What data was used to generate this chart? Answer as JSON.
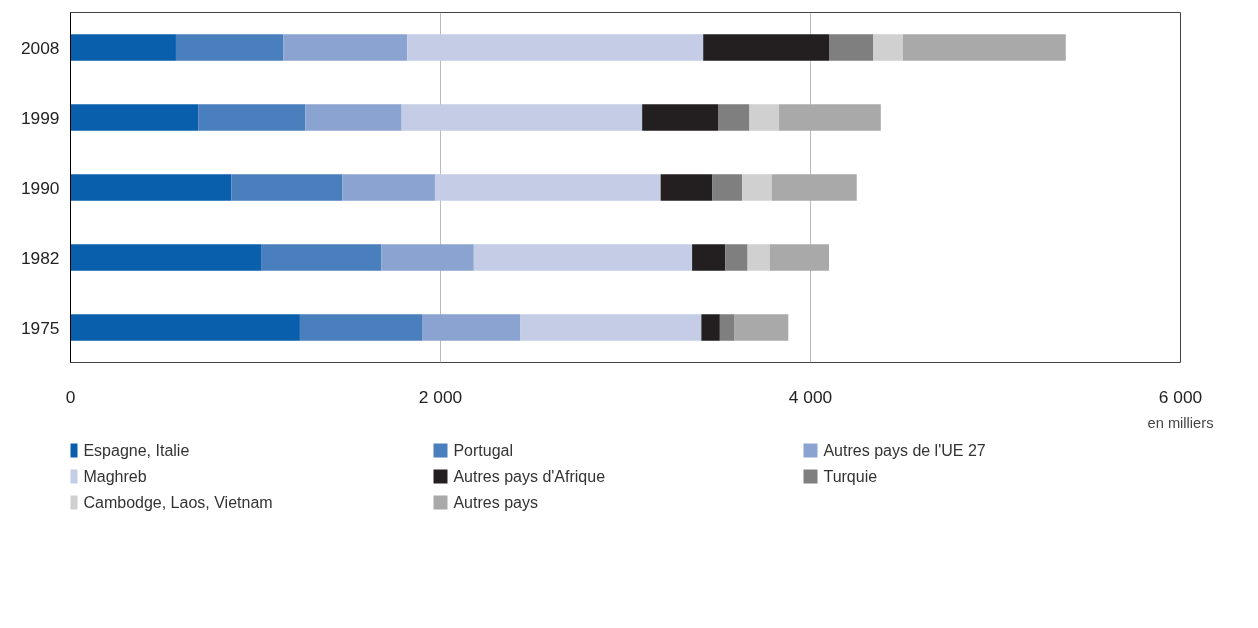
{
  "chart_data": {
    "type": "bar",
    "orientation": "horizontal",
    "stacked": true,
    "xlabel": "en milliers",
    "categories": [
      "2008",
      "1999",
      "1990",
      "1982",
      "1975"
    ],
    "series": [
      {
        "name": "Espagne, Italie",
        "color": "#0a5fad",
        "values": [
          570,
          690,
          870,
          1030,
          1240
        ]
      },
      {
        "name": "Portugal",
        "color": "#4a7fbd",
        "values": [
          580,
          580,
          600,
          650,
          660
        ]
      },
      {
        "name": "Autres pays de l'UE 27",
        "color": "#8aa3d1",
        "values": [
          670,
          520,
          500,
          500,
          530
        ]
      },
      {
        "name": "Maghreb",
        "color": "#c5cde6",
        "values": [
          1600,
          1300,
          1220,
          1180,
          980
        ]
      },
      {
        "name": "Autres pays d'Afrique",
        "color": "#231f20",
        "values": [
          680,
          410,
          280,
          180,
          100
        ]
      },
      {
        "name": "Turquie",
        "color": "#7f7f7f",
        "values": [
          240,
          170,
          160,
          120,
          80
        ]
      },
      {
        "name": "Cambodge, Laos, Vietnam",
        "color": "#d0d0d0",
        "values": [
          160,
          160,
          160,
          120,
          0
        ]
      },
      {
        "name": "Autres pays",
        "color": "#a9a9a9",
        "values": [
          880,
          550,
          460,
          320,
          290
        ]
      }
    ],
    "xlim": [
      0,
      6000
    ],
    "xticks": [
      0,
      {
        "value": 2000,
        "label": "2 000"
      },
      {
        "value": 4000,
        "label": "4 000"
      },
      {
        "value": 6000,
        "label": "6 000"
      }
    ],
    "grid": "x",
    "legend": "bottom"
  }
}
